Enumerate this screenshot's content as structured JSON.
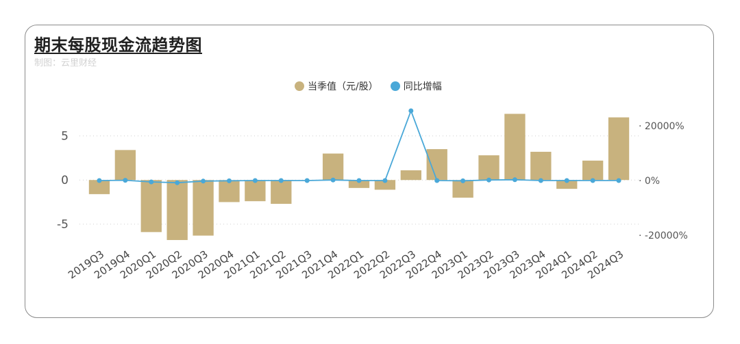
{
  "title": "期末每股现金流趋势图",
  "subtitle": "制图：云里财经",
  "colors": {
    "bar": "#c8b27e",
    "line": "#4aa8d8"
  },
  "chart_data": {
    "type": "bar",
    "categories": [
      "2019Q3",
      "2019Q4",
      "2020Q1",
      "2020Q2",
      "2020Q3",
      "2020Q4",
      "2021Q1",
      "2021Q2",
      "2021Q3",
      "2021Q4",
      "2022Q1",
      "2022Q2",
      "2022Q3",
      "2022Q4",
      "2023Q1",
      "2023Q2",
      "2023Q3",
      "2023Q4",
      "2024Q1",
      "2024Q2",
      "2024Q3"
    ],
    "series": [
      {
        "name": "当季值（元/股）",
        "type": "bar",
        "axis": "left",
        "values": [
          -1.6,
          3.4,
          -5.9,
          -6.8,
          -6.3,
          -2.5,
          -2.4,
          -2.7,
          0,
          3.0,
          -0.9,
          -1.1,
          1.1,
          3.5,
          -2.0,
          2.8,
          7.5,
          3.2,
          -1.0,
          2.2,
          7.1
        ]
      },
      {
        "name": "同比增幅",
        "type": "line",
        "axis": "right",
        "values": [
          0,
          100,
          -500,
          -800,
          -200,
          -100,
          0,
          0,
          0,
          200,
          0,
          0,
          25500,
          0,
          -100,
          200,
          300,
          0,
          0,
          0,
          0
        ]
      }
    ],
    "ylim_left": [
      -7.5,
      8
    ],
    "yticks_left": [
      -5,
      0,
      5
    ],
    "ylim_right": [
      -24000,
      26000
    ],
    "yticks_right": [
      {
        "value": 20000,
        "label": "20000%"
      },
      {
        "value": 0,
        "label": "0%"
      },
      {
        "value": -20000,
        "label": "-20000%"
      }
    ],
    "grid": true,
    "legend": "top-center"
  }
}
